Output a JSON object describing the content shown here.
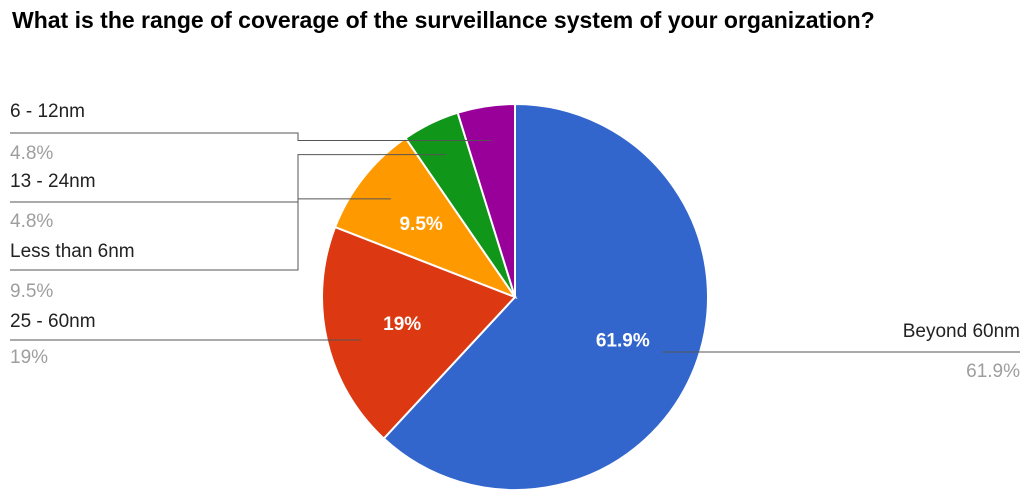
{
  "chart_data": {
    "type": "pie",
    "title": "What is the range of coverage of the surveillance system of your organization?",
    "slices": [
      {
        "label": "Beyond 60nm",
        "value": 61.9,
        "display": "61.9%",
        "color": "#3366cc"
      },
      {
        "label": "25 - 60nm",
        "value": 19.0,
        "display": "19%",
        "color": "#dc3912"
      },
      {
        "label": "Less than 6nm",
        "value": 9.5,
        "display": "9.5%",
        "color": "#ff9900"
      },
      {
        "label": "13 - 24nm",
        "value": 4.8,
        "display": "4.8%",
        "color": "#109618"
      },
      {
        "label": "6 - 12nm",
        "value": 4.8,
        "display": "4.8%",
        "color": "#990099"
      }
    ],
    "legend": "labeled",
    "start_angle": "top, clockwise"
  }
}
